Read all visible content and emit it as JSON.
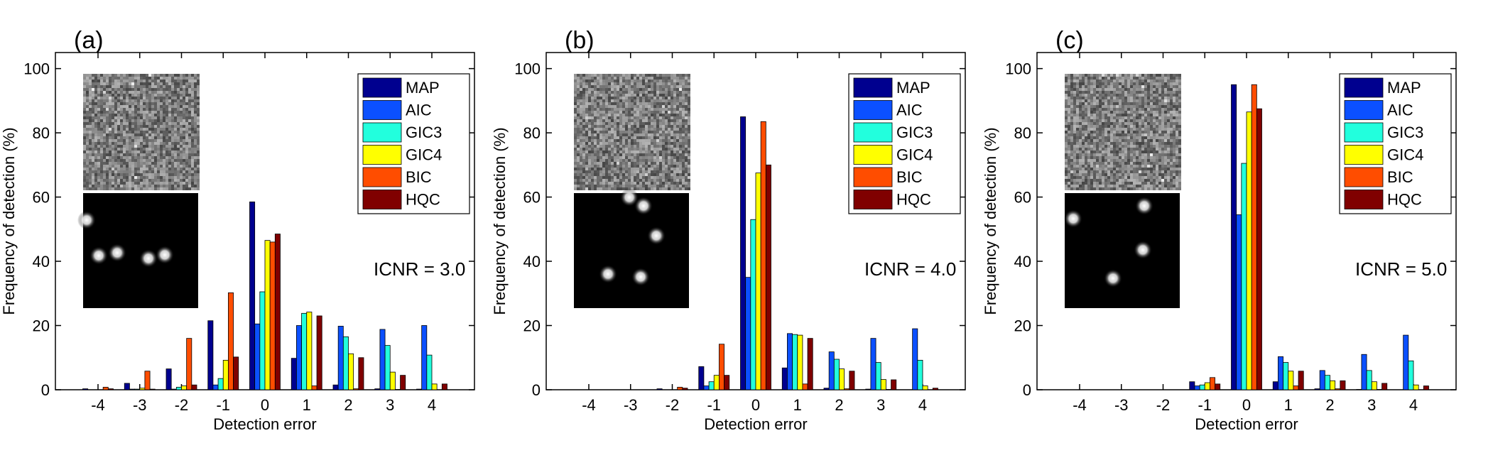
{
  "chart_data": [
    {
      "type": "bar",
      "panel_label": "(a)",
      "annotation": "ICNR = 3.0",
      "xlabel": "Detection error",
      "ylabel": "Frequency of detection (%)",
      "ylim": [
        0,
        105
      ],
      "yticks": [
        0,
        20,
        40,
        60,
        80,
        100
      ],
      "categories": [
        "-4",
        "-3",
        "-2",
        "-1",
        "0",
        "1",
        "2",
        "3",
        "4"
      ],
      "legend_position": "top-right",
      "grid": false,
      "series": [
        {
          "name": "MAP",
          "color": "#00008f",
          "values": [
            0.3,
            2.0,
            6.5,
            21.5,
            58.5,
            9.8,
            1.5,
            0.3,
            0.2
          ]
        },
        {
          "name": "AIC",
          "color": "#0b50ff",
          "values": [
            0,
            0.2,
            0.2,
            1.5,
            20.5,
            20,
            19.8,
            18.8,
            20
          ]
        },
        {
          "name": "GIC3",
          "color": "#22ffdd",
          "values": [
            0,
            0.2,
            0.8,
            3.5,
            30.5,
            23.8,
            16.5,
            13.8,
            10.8
          ]
        },
        {
          "name": "GIC4",
          "color": "#ffff00",
          "values": [
            0,
            0.5,
            1.2,
            9.2,
            46.5,
            24.2,
            11.2,
            5.5,
            1.8
          ]
        },
        {
          "name": "BIC",
          "color": "#ff4d00",
          "values": [
            0.8,
            5.8,
            16,
            30.2,
            46,
            1.2,
            0.3,
            0.1,
            0
          ]
        },
        {
          "name": "HQC",
          "color": "#800000",
          "values": [
            0.3,
            0.2,
            1.5,
            10.2,
            48.5,
            23,
            10,
            4.5,
            1.8
          ]
        }
      ]
    },
    {
      "type": "bar",
      "panel_label": "(b)",
      "annotation": "ICNR = 4.0",
      "xlabel": "Detection error",
      "ylabel": "Frequency of detection (%)",
      "ylim": [
        0,
        105
      ],
      "yticks": [
        0,
        20,
        40,
        60,
        80,
        100
      ],
      "categories": [
        "-4",
        "-3",
        "-2",
        "-1",
        "0",
        "1",
        "2",
        "3",
        "4"
      ],
      "legend_position": "top-right",
      "grid": false,
      "series": [
        {
          "name": "MAP",
          "color": "#00008f",
          "values": [
            0,
            0,
            0.3,
            7.2,
            85,
            6.8,
            0.5,
            0.2,
            0
          ]
        },
        {
          "name": "AIC",
          "color": "#0b50ff",
          "values": [
            0,
            0,
            0,
            1.2,
            35,
            17.5,
            11.8,
            16,
            19
          ]
        },
        {
          "name": "GIC3",
          "color": "#22ffdd",
          "values": [
            0,
            0,
            0,
            2.5,
            53,
            17.2,
            9.5,
            8.5,
            9.2
          ]
        },
        {
          "name": "GIC4",
          "color": "#ffff00",
          "values": [
            0,
            0,
            0,
            4.5,
            67.5,
            17,
            6.5,
            3.2,
            1.2
          ]
        },
        {
          "name": "BIC",
          "color": "#ff4d00",
          "values": [
            0,
            0,
            0.8,
            14.2,
            83.5,
            1.8,
            0.3,
            0.1,
            0
          ]
        },
        {
          "name": "HQC",
          "color": "#800000",
          "values": [
            0,
            0,
            0.5,
            4.5,
            70,
            16,
            5.8,
            3.1,
            0.5
          ]
        }
      ]
    },
    {
      "type": "bar",
      "panel_label": "(c)",
      "annotation": "ICNR = 5.0",
      "xlabel": "Detection error",
      "ylabel": "Frequency of detection (%)",
      "ylim": [
        0,
        105
      ],
      "yticks": [
        0,
        20,
        40,
        60,
        80,
        100
      ],
      "categories": [
        "-4",
        "-3",
        "-2",
        "-1",
        "0",
        "1",
        "2",
        "3",
        "4"
      ],
      "legend_position": "top-right",
      "grid": false,
      "series": [
        {
          "name": "MAP",
          "color": "#00008f",
          "values": [
            0,
            0,
            0,
            2.5,
            95,
            2.5,
            0.3,
            0.1,
            0
          ]
        },
        {
          "name": "AIC",
          "color": "#0b50ff",
          "values": [
            0,
            0,
            0,
            1.2,
            54.5,
            10.3,
            6,
            11,
            17
          ]
        },
        {
          "name": "GIC3",
          "color": "#22ffdd",
          "values": [
            0,
            0,
            0,
            1.5,
            70.5,
            8.5,
            4.5,
            6,
            9
          ]
        },
        {
          "name": "GIC4",
          "color": "#ffff00",
          "values": [
            0,
            0,
            0,
            2.2,
            86.5,
            5.8,
            2.8,
            2.5,
            1.5
          ]
        },
        {
          "name": "BIC",
          "color": "#ff4d00",
          "values": [
            0,
            0,
            0,
            3.8,
            95,
            1.2,
            0.3,
            0.1,
            0
          ]
        },
        {
          "name": "HQC",
          "color": "#800000",
          "values": [
            0,
            0,
            0,
            1.8,
            87.5,
            5.8,
            2.8,
            2,
            1.2
          ]
        }
      ]
    }
  ]
}
